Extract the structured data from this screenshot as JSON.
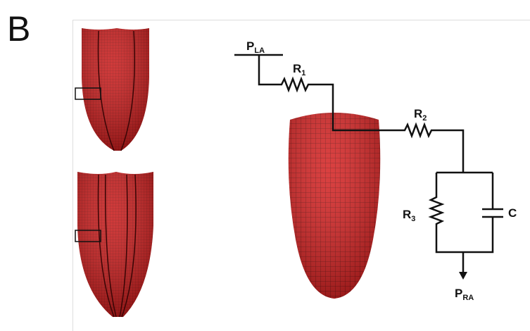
{
  "panel_label": "B",
  "labels": [
    {
      "main": "P",
      "sub": "LA"
    },
    {
      "main": "R",
      "sub": "1"
    },
    {
      "main": "R",
      "sub": "2"
    },
    {
      "main": "R",
      "sub": "3"
    },
    {
      "main": "C"
    },
    {
      "main": "P",
      "sub": "RA"
    }
  ]
}
